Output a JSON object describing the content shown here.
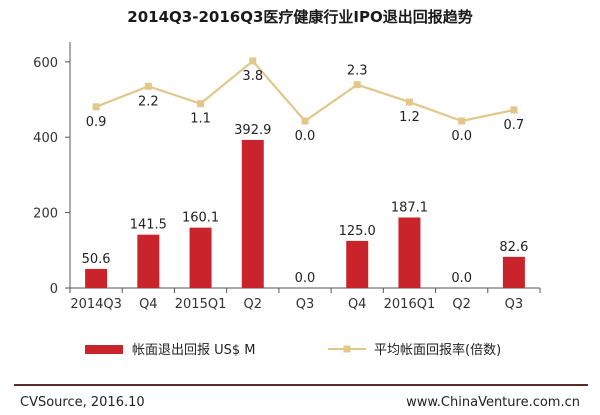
{
  "chart_data": {
    "type": "bar",
    "title": "2014Q3-2016Q3医疗健康行业IPO退出回报趋势",
    "categories": [
      "2014Q3",
      "Q4",
      "2015Q1",
      "Q2",
      "Q3",
      "Q4",
      "2016Q1",
      "Q2",
      "Q3"
    ],
    "ylim": [
      0,
      650
    ],
    "yticks": [
      0,
      200,
      400,
      600
    ],
    "grid": false,
    "legend_position": "bottom",
    "series": [
      {
        "name": "帐面退出回报 US$ M",
        "type": "bar",
        "color": "#C9242B",
        "values": [
          50.6,
          141.5,
          160.1,
          392.9,
          0.0,
          125.0,
          187.1,
          0.0,
          82.6
        ],
        "labels": [
          "50.6",
          "141.5",
          "160.1",
          "392.9",
          "0.0",
          "125.0",
          "187.1",
          "0.0",
          "82.6"
        ]
      },
      {
        "name": "平均帐面回报率(倍数)",
        "type": "line",
        "color": "#E2C78A",
        "values": [
          0.9,
          2.2,
          1.1,
          3.8,
          0.0,
          2.3,
          1.2,
          0.0,
          0.7
        ],
        "labels": [
          "0.9",
          "2.2",
          "1.1",
          "3.8",
          "0.0",
          "2.3",
          "1.2",
          "0.0",
          "0.7"
        ]
      }
    ]
  },
  "footer": {
    "source": "CVSource, 2016.10",
    "site": "www.ChinaVenture.com.cn"
  }
}
